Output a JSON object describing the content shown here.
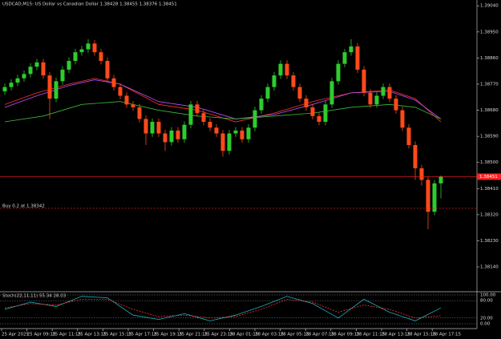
{
  "chart_data": [
    {
      "type": "candlestick",
      "title": "USDCAD,M15:  US Dollar vs Canadian Dollar  1.38428 1.38455 1.38376 1.38451",
      "open": [
        1.38745,
        1.3876,
        1.38775,
        1.3879,
        1.38805,
        1.3883,
        1.38845,
        1.388,
        1.3872,
        1.3878,
        1.3882,
        1.3885,
        1.3888,
        1.3889,
        1.3891,
        1.3888,
        1.3885,
        1.3879,
        1.3876,
        1.3873,
        1.387,
        1.3869,
        1.3865,
        1.386,
        1.3864,
        1.386,
        1.3857,
        1.3861,
        1.3858,
        1.3863,
        1.387,
        1.3867,
        1.3864,
        1.3862,
        1.386,
        1.3854,
        1.386,
        1.3861,
        1.3858,
        1.3862,
        1.3868,
        1.3872,
        1.3876,
        1.388,
        1.3884,
        1.388,
        1.3876,
        1.3872,
        1.3869,
        1.3866,
        1.3864,
        1.387,
        1.3878,
        1.3884,
        1.3888,
        1.389,
        1.3882,
        1.3874,
        1.387,
        1.3873,
        1.3876,
        1.3872,
        1.3868,
        1.3862,
        1.3856,
        1.3848,
        1.3844,
        1.3833,
        1.38428
      ],
      "high": [
        1.38772,
        1.38787,
        1.38802,
        1.38817,
        1.38842,
        1.38857,
        1.38857,
        1.38812,
        1.38792,
        1.38832,
        1.38862,
        1.38892,
        1.38902,
        1.38925,
        1.38922,
        1.38892,
        1.38862,
        1.38802,
        1.38772,
        1.38742,
        1.38712,
        1.38702,
        1.38662,
        1.38652,
        1.38652,
        1.38612,
        1.38622,
        1.38622,
        1.38642,
        1.38712,
        1.38712,
        1.38682,
        1.38652,
        1.38632,
        1.38612,
        1.38612,
        1.38622,
        1.38622,
        1.38632,
        1.38692,
        1.38732,
        1.38772,
        1.38812,
        1.38852,
        1.38852,
        1.38812,
        1.38772,
        1.38732,
        1.38702,
        1.38672,
        1.38712,
        1.38792,
        1.38852,
        1.38892,
        1.38925,
        1.38912,
        1.38832,
        1.38752,
        1.38742,
        1.38772,
        1.38772,
        1.38732,
        1.38692,
        1.38632,
        1.38572,
        1.38492,
        1.38452,
        1.3844,
        1.38455
      ],
      "low": [
        1.38733,
        1.38748,
        1.38763,
        1.38778,
        1.38793,
        1.38818,
        1.38788,
        1.3865,
        1.38708,
        1.38768,
        1.38808,
        1.38838,
        1.38868,
        1.38878,
        1.38868,
        1.38838,
        1.38778,
        1.38748,
        1.38718,
        1.38688,
        1.38678,
        1.38638,
        1.3856,
        1.38588,
        1.38588,
        1.3854,
        1.38558,
        1.38568,
        1.38568,
        1.38618,
        1.38658,
        1.38628,
        1.38608,
        1.38588,
        1.3852,
        1.38528,
        1.38588,
        1.38568,
        1.38568,
        1.38608,
        1.38668,
        1.38708,
        1.38748,
        1.38788,
        1.38788,
        1.38748,
        1.38708,
        1.38678,
        1.38648,
        1.38628,
        1.38628,
        1.38688,
        1.38768,
        1.38828,
        1.38868,
        1.38808,
        1.38728,
        1.38688,
        1.38688,
        1.38718,
        1.38708,
        1.38668,
        1.38608,
        1.38548,
        1.3844,
        1.3842,
        1.3827,
        1.38318,
        1.38376
      ],
      "close": [
        1.3876,
        1.38775,
        1.3879,
        1.38805,
        1.3883,
        1.38845,
        1.388,
        1.3872,
        1.3878,
        1.3882,
        1.3885,
        1.3888,
        1.3889,
        1.3891,
        1.3888,
        1.3885,
        1.3879,
        1.3876,
        1.3873,
        1.387,
        1.3869,
        1.3865,
        1.386,
        1.3864,
        1.386,
        1.3857,
        1.3861,
        1.3858,
        1.3863,
        1.387,
        1.3867,
        1.3864,
        1.3862,
        1.386,
        1.3854,
        1.386,
        1.3861,
        1.3858,
        1.3862,
        1.3868,
        1.3872,
        1.3876,
        1.388,
        1.3884,
        1.388,
        1.3876,
        1.3872,
        1.3869,
        1.3866,
        1.3864,
        1.387,
        1.3878,
        1.3884,
        1.3888,
        1.389,
        1.3882,
        1.3874,
        1.387,
        1.3873,
        1.3876,
        1.3872,
        1.3868,
        1.3862,
        1.3856,
        1.3848,
        1.3844,
        1.3833,
        1.38428,
        1.38451
      ],
      "up_color": "#2ecc2e",
      "down_color": "#ff4a1a",
      "lines": [
        {
          "color": "#ff3030",
          "x": [
            0,
            5,
            10,
            14,
            18,
            24,
            30,
            36,
            42,
            48,
            54,
            60,
            64,
            68
          ],
          "values": [
            1.387,
            1.3874,
            1.3877,
            1.3879,
            1.3877,
            1.387,
            1.3868,
            1.3864,
            1.3867,
            1.3871,
            1.3874,
            1.3875,
            1.3872,
            1.3864
          ]
        },
        {
          "color": "#c050ff",
          "x": [
            0,
            5,
            10,
            14,
            18,
            24,
            30,
            36,
            42,
            48,
            54,
            60,
            64,
            68
          ],
          "values": [
            1.3869,
            1.3873,
            1.38765,
            1.38785,
            1.3877,
            1.3871,
            1.3869,
            1.3865,
            1.38665,
            1.387,
            1.3874,
            1.38745,
            1.38715,
            1.3865
          ]
        },
        {
          "color": "#3cb83c",
          "x": [
            0,
            6,
            12,
            18,
            24,
            30,
            36,
            42,
            48,
            54,
            60,
            64,
            68
          ],
          "values": [
            1.3864,
            1.3866,
            1.387,
            1.3871,
            1.3868,
            1.3866,
            1.3865,
            1.3866,
            1.3867,
            1.3869,
            1.387,
            1.3869,
            1.3865
          ]
        }
      ],
      "bid_line": 1.38451,
      "order": {
        "label": "Buy 0.2 at 1.38342",
        "price": 1.38342
      },
      "ylim": [
        1.3806,
        1.3906
      ],
      "yticks": [
        {
          "value": 1.3904,
          "label": "1.39040"
        },
        {
          "value": 1.3895,
          "label": "1.38950"
        },
        {
          "value": 1.3886,
          "label": "1.38860"
        },
        {
          "value": 1.3877,
          "label": "1.38770"
        },
        {
          "value": 1.3868,
          "label": "1.38680"
        },
        {
          "value": 1.3859,
          "label": "1.38590"
        },
        {
          "value": 1.385,
          "label": "1.38500"
        },
        {
          "value": 1.3841,
          "label": "1.38410"
        },
        {
          "value": 1.3832,
          "label": "1.38320"
        },
        {
          "value": 1.3823,
          "label": "1.38230"
        },
        {
          "value": 1.3814,
          "label": "1.38140"
        }
      ],
      "time_labels": [
        "25 Apr 2025",
        "25 Apr 09:15",
        "25 Apr 11:15",
        "25 Apr 13:15",
        "25 Apr 15:15",
        "25 Apr 17:15",
        "25 Apr 19:15",
        "25 Apr 21:15",
        "25 Apr 23:15",
        "28 Apr 01:15",
        "28 Apr 03:15",
        "28 Apr 05:15",
        "28 Apr 07:15",
        "28 Apr 09:15",
        "28 Apr 11:15",
        "28 Apr 13:15",
        "28 Apr 15:15",
        "28 Apr 17:15"
      ]
    },
    {
      "type": "line",
      "title": "Stoch(22,11,11) 55.34 28.03",
      "series": [
        {
          "color": "#20b0c0",
          "x": [
            0,
            4,
            8,
            12,
            16,
            20,
            24,
            28,
            32,
            36,
            40,
            44,
            48,
            52,
            56,
            60,
            64,
            68
          ],
          "values": [
            50,
            75,
            60,
            95,
            90,
            30,
            15,
            35,
            10,
            30,
            60,
            95,
            70,
            20,
            85,
            40,
            10,
            55
          ]
        },
        {
          "color": "#ff3030",
          "x": [
            0,
            4,
            8,
            12,
            16,
            20,
            24,
            28,
            32,
            36,
            40,
            44,
            48,
            52,
            56,
            60,
            64,
            68
          ],
          "values": [
            55,
            70,
            65,
            85,
            85,
            50,
            25,
            30,
            20,
            25,
            50,
            85,
            75,
            40,
            65,
            50,
            20,
            28
          ]
        }
      ],
      "ylim": [
        0,
        100
      ],
      "yticks": [
        {
          "value": 0,
          "label": "0.00"
        },
        {
          "value": 20,
          "label": "20.00"
        },
        {
          "value": 80,
          "label": "80.00"
        },
        {
          "value": 100,
          "label": "100.00"
        }
      ]
    }
  ]
}
